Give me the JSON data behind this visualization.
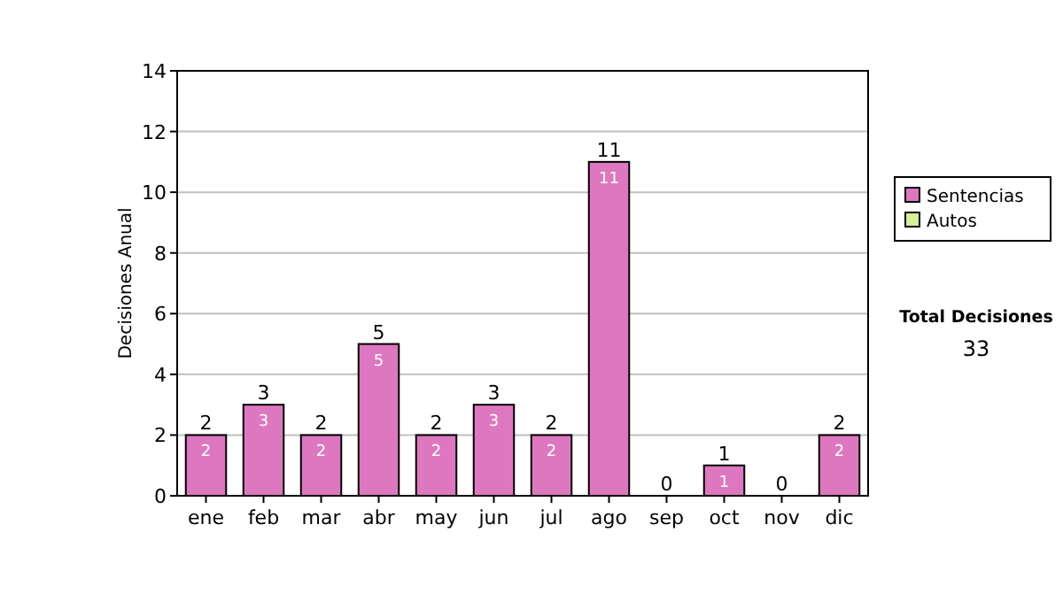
{
  "chart_data": {
    "type": "bar",
    "stacked": true,
    "ylabel": "Decisiones Anual",
    "categories": [
      "ene",
      "feb",
      "mar",
      "abr",
      "may",
      "jun",
      "jul",
      "ago",
      "sep",
      "oct",
      "nov",
      "dic"
    ],
    "series": [
      {
        "name": "Sentencias",
        "color": "#dd77c0",
        "values": [
          2,
          3,
          2,
          5,
          2,
          3,
          2,
          11,
          0,
          1,
          0,
          2
        ],
        "value_labels": [
          "2",
          "3",
          "2",
          "5",
          "2",
          "3",
          "2",
          "11",
          null,
          "1",
          null,
          "2"
        ]
      },
      {
        "name": "Autos",
        "color": "#d4ee99",
        "values": [
          0,
          0,
          0,
          0,
          0,
          0,
          0,
          0,
          0,
          0,
          0,
          0
        ]
      }
    ],
    "totals": [
      "2",
      "3",
      "2",
      "5",
      "2",
      "3",
      "2",
      "11",
      "0",
      "1",
      "0",
      "2"
    ],
    "ylim": [
      0,
      14
    ],
    "yticks": [
      0,
      2,
      4,
      6,
      8,
      10,
      12,
      14
    ],
    "grid": "y",
    "legend": "right",
    "annotations": [
      "Total Decisiones",
      "33"
    ]
  }
}
